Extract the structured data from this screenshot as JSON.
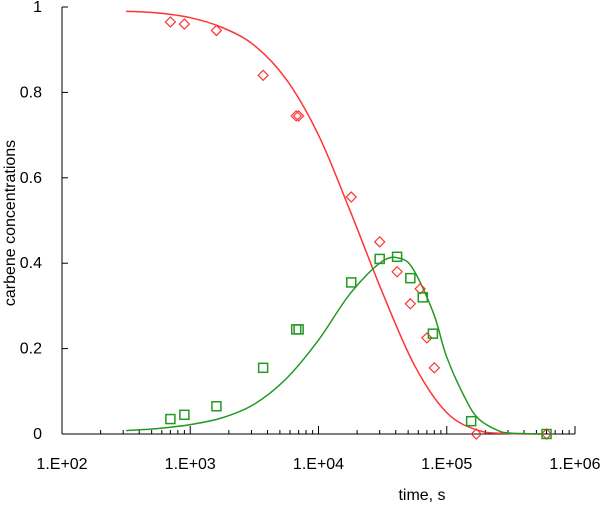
{
  "chart_data": {
    "type": "scatter",
    "title": "",
    "xlabel": "time, s",
    "ylabel": "carbene concentrations",
    "xscale": "log",
    "xlim": [
      100,
      1000000
    ],
    "ylim": [
      0,
      1
    ],
    "x_tick_labels": [
      {
        "value": 100,
        "label": "1.E+02"
      },
      {
        "value": 1000,
        "label": "1.E+03"
      },
      {
        "value": 10000,
        "label": "1.E+04"
      },
      {
        "value": 100000,
        "label": "1.E+05"
      },
      {
        "value": 1000000,
        "label": "1.E+06"
      }
    ],
    "y_tick_labels": [
      {
        "value": 0,
        "label": "0"
      },
      {
        "value": 0.2,
        "label": "0.2"
      },
      {
        "value": 0.4,
        "label": "0.4"
      },
      {
        "value": 0.6,
        "label": "0.6"
      },
      {
        "value": 0.8,
        "label": "0.8"
      },
      {
        "value": 1,
        "label": "1"
      }
    ],
    "grid": false,
    "legend": "none",
    "series": [
      {
        "color": "#ff3333",
        "marker": "diamond",
        "points": [
          {
            "x": 700,
            "y": 0.965
          },
          {
            "x": 900,
            "y": 0.96
          },
          {
            "x": 1600,
            "y": 0.945
          },
          {
            "x": 3700,
            "y": 0.84
          },
          {
            "x": 6700,
            "y": 0.745
          },
          {
            "x": 7000,
            "y": 0.745
          },
          {
            "x": 18000,
            "y": 0.555
          },
          {
            "x": 30000,
            "y": 0.45
          },
          {
            "x": 41000,
            "y": 0.38
          },
          {
            "x": 52000,
            "y": 0.305
          },
          {
            "x": 62000,
            "y": 0.34
          },
          {
            "x": 70000,
            "y": 0.225
          },
          {
            "x": 80000,
            "y": 0.155
          },
          {
            "x": 170000,
            "y": 0.0
          },
          {
            "x": 600000,
            "y": 0.0
          }
        ],
        "curve": [
          {
            "x": 316,
            "y": 0.99
          },
          {
            "x": 562,
            "y": 0.986
          },
          {
            "x": 1000,
            "y": 0.975
          },
          {
            "x": 1778,
            "y": 0.952
          },
          {
            "x": 3162,
            "y": 0.91
          },
          {
            "x": 5623,
            "y": 0.83
          },
          {
            "x": 10000,
            "y": 0.7
          },
          {
            "x": 17783,
            "y": 0.52
          },
          {
            "x": 31623,
            "y": 0.33
          },
          {
            "x": 56234,
            "y": 0.16
          },
          {
            "x": 100000,
            "y": 0.05
          },
          {
            "x": 177828,
            "y": 0.008
          },
          {
            "x": 316228,
            "y": 0.001
          },
          {
            "x": 562341,
            "y": 0.0
          }
        ]
      },
      {
        "color": "#229922",
        "marker": "square",
        "points": [
          {
            "x": 700,
            "y": 0.035
          },
          {
            "x": 900,
            "y": 0.045
          },
          {
            "x": 1600,
            "y": 0.065
          },
          {
            "x": 3700,
            "y": 0.155
          },
          {
            "x": 6700,
            "y": 0.245
          },
          {
            "x": 7000,
            "y": 0.245
          },
          {
            "x": 18000,
            "y": 0.355
          },
          {
            "x": 30000,
            "y": 0.41
          },
          {
            "x": 41000,
            "y": 0.415
          },
          {
            "x": 52000,
            "y": 0.365
          },
          {
            "x": 65000,
            "y": 0.32
          },
          {
            "x": 78000,
            "y": 0.235
          },
          {
            "x": 155000,
            "y": 0.03
          },
          {
            "x": 600000,
            "y": 0.0
          }
        ],
        "curve": [
          {
            "x": 316,
            "y": 0.008
          },
          {
            "x": 562,
            "y": 0.013
          },
          {
            "x": 1000,
            "y": 0.022
          },
          {
            "x": 1778,
            "y": 0.038
          },
          {
            "x": 3162,
            "y": 0.07
          },
          {
            "x": 5623,
            "y": 0.13
          },
          {
            "x": 10000,
            "y": 0.22
          },
          {
            "x": 17783,
            "y": 0.33
          },
          {
            "x": 31623,
            "y": 0.405
          },
          {
            "x": 44668,
            "y": 0.41
          },
          {
            "x": 56234,
            "y": 0.38
          },
          {
            "x": 79433,
            "y": 0.28
          },
          {
            "x": 100000,
            "y": 0.18
          },
          {
            "x": 141254,
            "y": 0.08
          },
          {
            "x": 177828,
            "y": 0.035
          },
          {
            "x": 251189,
            "y": 0.008
          },
          {
            "x": 316228,
            "y": 0.002
          },
          {
            "x": 562341,
            "y": 0.0
          }
        ]
      }
    ]
  }
}
